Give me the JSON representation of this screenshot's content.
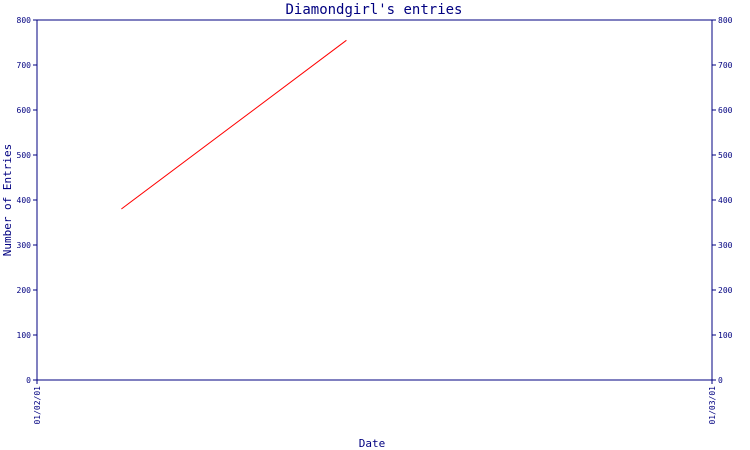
{
  "chart_data": {
    "type": "line",
    "title": "Diamondgirl's entries",
    "xlabel": "Date",
    "ylabel": "Number of Entries",
    "ylim": [
      0,
      800
    ],
    "yticks": [
      0,
      100,
      200,
      300,
      400,
      500,
      600,
      700,
      800
    ],
    "xticks": [
      "01/02/01",
      "01/03/01"
    ],
    "xlim": [
      "2001-01-02",
      "2001-01-03"
    ],
    "right_axis": true,
    "grid": false,
    "series": [
      {
        "color": "#ff0000",
        "points": [
          {
            "x": "2001-01-02T03:00",
            "y": 380
          },
          {
            "x": "2001-01-02T11:00",
            "y": 755
          }
        ]
      }
    ]
  },
  "colors": {
    "axis": "#000080",
    "background": "#ffffff"
  }
}
